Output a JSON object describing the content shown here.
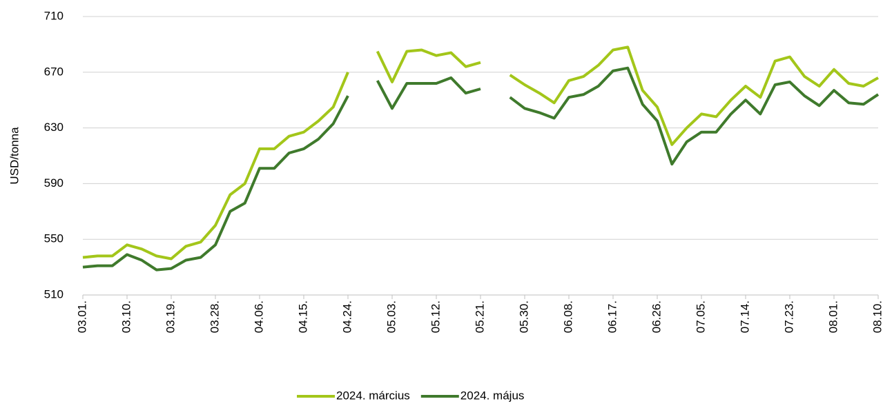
{
  "chart_data": {
    "type": "line",
    "ylabel": "USD/tonna",
    "categories": [
      "03.01.",
      null,
      null,
      "03.10.",
      null,
      null,
      "03.19.",
      null,
      null,
      "03.28.",
      null,
      null,
      "04.06.",
      null,
      null,
      "04.15.",
      null,
      null,
      "04.24.",
      null,
      null,
      "05.03.",
      null,
      null,
      "05.12.",
      null,
      null,
      "05.21.",
      null,
      null,
      "05.30.",
      null,
      null,
      "06.08.",
      null,
      null,
      "06.17.",
      null,
      null,
      "06.26.",
      null,
      null,
      "07.05.",
      null,
      null,
      "07.14.",
      null,
      null,
      "07.23.",
      null,
      null,
      "08.01.",
      null,
      null,
      "08.10."
    ],
    "series": [
      {
        "name": "2024. március",
        "color": "#a3c61a",
        "values": [
          537,
          538,
          538,
          546,
          543,
          538,
          536,
          545,
          548,
          560,
          582,
          590,
          615,
          615,
          624,
          627,
          635,
          645,
          670,
          null,
          685,
          663,
          685,
          686,
          682,
          684,
          674,
          677,
          null,
          668,
          661,
          655,
          648,
          664,
          667,
          675,
          686,
          688,
          657,
          645,
          618,
          630,
          640,
          638,
          650,
          660,
          652,
          678,
          681,
          667,
          660,
          672,
          662,
          660,
          666
        ]
      },
      {
        "name": "2024. május",
        "color": "#3f7a2c",
        "values": [
          530,
          531,
          531,
          539,
          535,
          528,
          529,
          535,
          537,
          546,
          570,
          576,
          601,
          601,
          612,
          615,
          622,
          633,
          653,
          null,
          664,
          644,
          662,
          662,
          662,
          666,
          655,
          658,
          null,
          652,
          644,
          641,
          637,
          652,
          654,
          660,
          671,
          673,
          647,
          635,
          604,
          620,
          627,
          627,
          640,
          650,
          640,
          661,
          663,
          653,
          646,
          657,
          648,
          647,
          654
        ]
      }
    ],
    "ylim": [
      510,
      710
    ],
    "yticks": [
      510,
      550,
      590,
      630,
      670,
      710
    ],
    "grid": true,
    "legend": "bottom"
  }
}
